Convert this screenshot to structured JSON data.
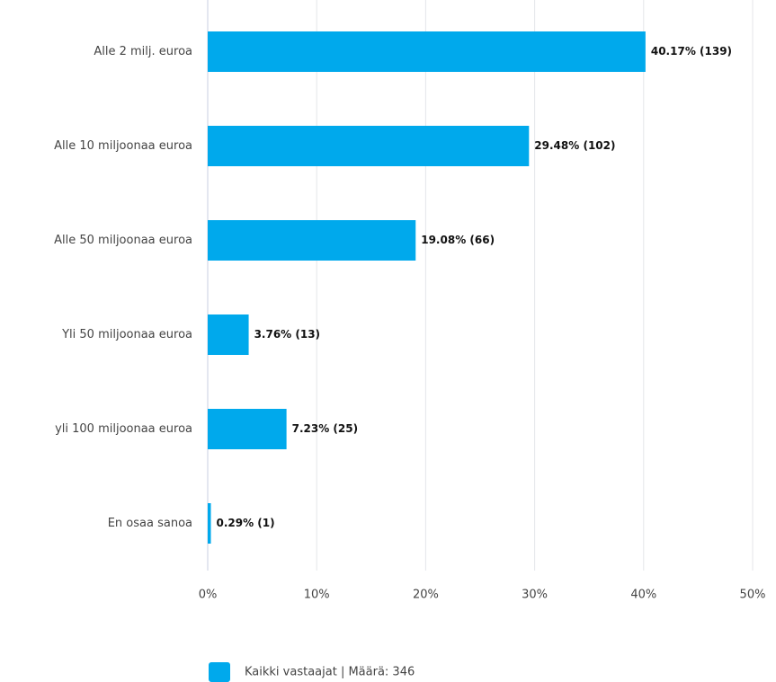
{
  "chart_data": {
    "type": "bar",
    "orientation": "horizontal",
    "categories": [
      "Alle 2 milj. euroa",
      "Alle 10 miljoonaa euroa",
      "Alle 50 miljoonaa euroa",
      "Yli 50 miljoonaa euroa",
      "yli 100 miljoonaa euroa",
      "En osaa sanoa"
    ],
    "series": [
      {
        "name": "Kaikki vastaajat | Määrä: 346",
        "color": "#00a9ec",
        "values": [
          40.17,
          29.48,
          19.08,
          3.76,
          7.23,
          0.29
        ],
        "value_labels": [
          "40.17% (139)",
          "29.48% (102)",
          "19.08% (66)",
          "3.76% (13)",
          "7.23% (25)",
          "0.29% (1)"
        ]
      }
    ],
    "xlim": [
      0,
      50
    ],
    "xticks": [
      {
        "value": 0,
        "label": "0%"
      },
      {
        "value": 10,
        "label": "10%"
      },
      {
        "value": 20,
        "label": "20%"
      },
      {
        "value": 30,
        "label": "30%"
      },
      {
        "value": 40,
        "label": "40%"
      },
      {
        "value": 50,
        "label": "50%"
      }
    ],
    "grid": true,
    "legend": "bottom"
  }
}
